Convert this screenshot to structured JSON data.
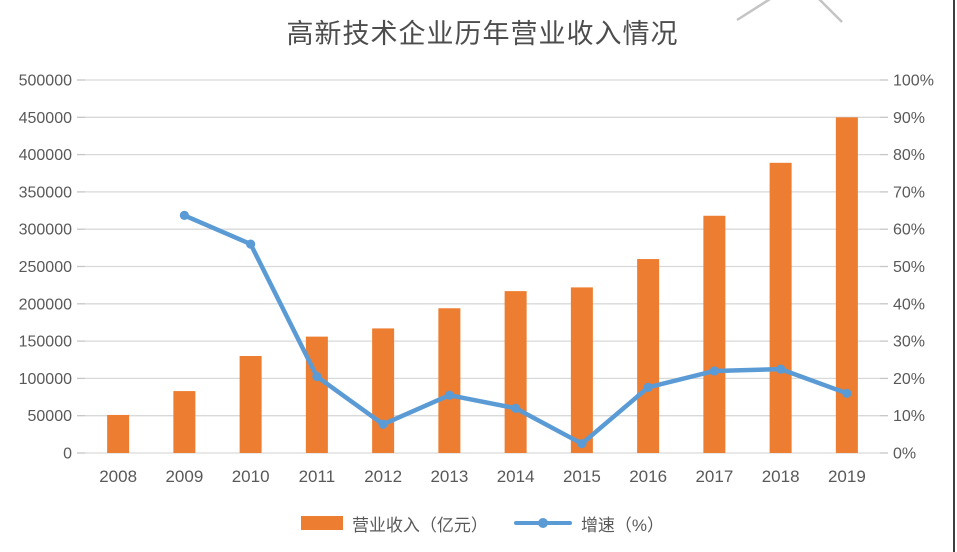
{
  "chart": {
    "title": "高新技术企业历年营业收入情况",
    "styles": {
      "bar_color": "#ED7D31",
      "line_color": "#5B9BD5",
      "grid_color": "#D9D9D9",
      "tick_color": "#C6C6C6",
      "axis_text_color": "#595959",
      "title_color": "#4d4d4d"
    },
    "legend": {
      "bar_label": "营业收入（亿元）",
      "line_label": "增速（%）"
    }
  },
  "chart_data": {
    "type": "bar",
    "combo": "bar+line dual-axis",
    "title": "高新技术企业历年营业收入情况",
    "categories": [
      "2008",
      "2009",
      "2010",
      "2011",
      "2012",
      "2013",
      "2014",
      "2015",
      "2016",
      "2017",
      "2018",
      "2019"
    ],
    "series": [
      {
        "name": "营业收入（亿元）",
        "type": "bar",
        "axis": "left",
        "color": "#ED7D31",
        "values": [
          51000,
          83000,
          130000,
          156000,
          167000,
          194000,
          217000,
          222000,
          260000,
          318000,
          389000,
          450000
        ]
      },
      {
        "name": "增速（%）",
        "type": "line",
        "axis": "right",
        "color": "#5B9BD5",
        "values": [
          null,
          63.7,
          56,
          20.5,
          7.7,
          15.5,
          12,
          2.5,
          17.6,
          22,
          22.5,
          16
        ]
      }
    ],
    "left_axis": {
      "min": 0,
      "max": 500000,
      "step": 50000,
      "ticks": [
        "0",
        "50000",
        "100000",
        "150000",
        "200000",
        "250000",
        "300000",
        "350000",
        "400000",
        "450000",
        "500000"
      ]
    },
    "right_axis": {
      "min": 0,
      "max": 100,
      "step": 10,
      "ticks": [
        "0%",
        "10%",
        "20%",
        "30%",
        "40%",
        "50%",
        "60%",
        "70%",
        "80%",
        "90%",
        "100%"
      ]
    },
    "grid": true,
    "legend_position": "bottom",
    "xlabel": "",
    "ylabel": ""
  }
}
